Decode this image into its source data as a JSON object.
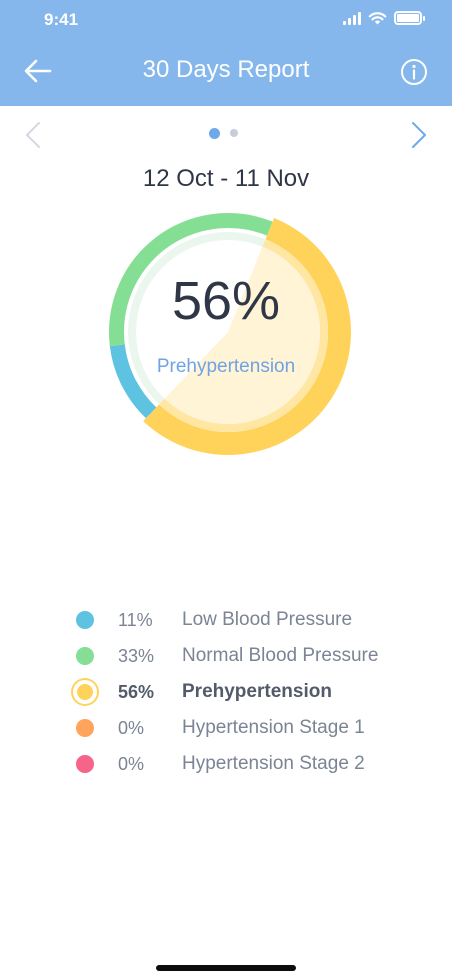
{
  "status_bar": {
    "time": "9:41"
  },
  "header": {
    "title": "30 Days Report"
  },
  "date_range": "12 Oct - 11 Nov",
  "summary": {
    "percent": "56%",
    "category": "Prehypertension"
  },
  "colors": {
    "header_bg": "#85b7ec",
    "low": "#5ec3e0",
    "normal": "#84df94",
    "prehypertension": "#ffd35a",
    "stage1": "#ffa45c",
    "stage2": "#f76489"
  },
  "chart_data": {
    "type": "pie",
    "categories": [
      "Low Blood Pressure",
      "Normal Blood Pressure",
      "Prehypertension",
      "Hypertension Stage 1",
      "Hypertension Stage 2"
    ],
    "values": [
      11,
      33,
      56,
      0,
      0
    ],
    "highlighted": "Prehypertension"
  },
  "legend": [
    {
      "pct": "11%",
      "label": "Low Blood Pressure",
      "color": "#5ec3e0",
      "selected": false
    },
    {
      "pct": "33%",
      "label": "Normal Blood Pressure",
      "color": "#84df94",
      "selected": false
    },
    {
      "pct": "56%",
      "label": "Prehypertension",
      "color": "#ffd35a",
      "selected": true
    },
    {
      "pct": "0%",
      "label": "Hypertension Stage 1",
      "color": "#ffa45c",
      "selected": false
    },
    {
      "pct": "0%",
      "label": "Hypertension Stage 2",
      "color": "#f76489",
      "selected": false
    }
  ],
  "pager": {
    "page": 1,
    "total": 2
  }
}
